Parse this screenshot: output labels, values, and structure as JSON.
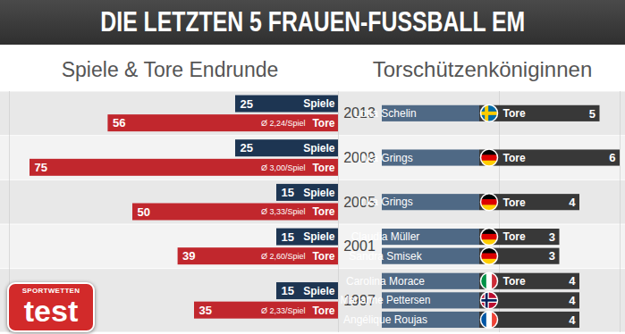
{
  "title": "DIE LETZTEN 5 FRAUEN-FUSSBALL EM",
  "logo": {
    "top": "SPORTWETTEN",
    "main": "test"
  },
  "chart_data": [
    {
      "type": "bar",
      "title": "Spiele & Tore Endrunde",
      "orientation": "horizontal",
      "categories": [
        "2013",
        "2009",
        "2005",
        "2001",
        "1997"
      ],
      "series": [
        {
          "name": "Spiele",
          "color": "#1d3552",
          "values": [
            25,
            25,
            15,
            15,
            15
          ]
        },
        {
          "name": "Tore",
          "color": "#c1272d",
          "values": [
            56,
            75,
            50,
            39,
            35
          ],
          "annotations": [
            "Ø 2,24/Spiel",
            "Ø 3,00/Spiel",
            "Ø 3,33/Spiel",
            "Ø 2,60/Spiel",
            "Ø 2,33/Spiel"
          ]
        }
      ],
      "xlim": [
        0,
        80
      ],
      "data_labels": true,
      "tick_labels": false,
      "grid": false
    },
    {
      "type": "bar",
      "title": "Torschützenköniginnen",
      "orientation": "horizontal",
      "categories": [
        "2013",
        "2009",
        "2005",
        "2001",
        "1997"
      ],
      "series": [
        {
          "name": "Tore",
          "color": "#383838"
        }
      ],
      "scorers": [
        [
          {
            "name": "Lotta Schelin",
            "goals": 5,
            "flag": {
              "marker": "cross",
              "colors": [
                "#006aa7",
                "#fecc00"
              ]
            }
          }
        ],
        [
          {
            "name": "Inka Grings",
            "goals": 6,
            "flag": {
              "marker": "horizontal",
              "colors": [
                "#000000",
                "#dd0000",
                "#ffce00"
              ]
            }
          }
        ],
        [
          {
            "name": "Inka Grings",
            "goals": 4,
            "flag": {
              "marker": "horizontal",
              "colors": [
                "#000000",
                "#dd0000",
                "#ffce00"
              ]
            }
          }
        ],
        [
          {
            "name": "Claudia Müller",
            "goals": 3,
            "flag": {
              "marker": "horizontal",
              "colors": [
                "#000000",
                "#dd0000",
                "#ffce00"
              ]
            }
          },
          {
            "name": "Sandra Smisek",
            "goals": 3,
            "flag": {
              "marker": "horizontal",
              "colors": [
                "#000000",
                "#dd0000",
                "#ffce00"
              ]
            }
          }
        ],
        [
          {
            "name": "Carolina Morace",
            "goals": 4,
            "flag": {
              "marker": "vertical",
              "colors": [
                "#009246",
                "#ffffff",
                "#ce2b37"
              ]
            }
          },
          {
            "name": "Marianne Pettersen",
            "goals": 4,
            "flag": {
              "marker": "cross",
              "colors": [
                "#ba0c2f",
                "#ffffff",
                "#00205b"
              ]
            }
          },
          {
            "name": "Angélique Roujas",
            "goals": 4,
            "flag": {
              "marker": "vertical",
              "colors": [
                "#0055a4",
                "#ffffff",
                "#ef4135"
              ]
            }
          }
        ]
      ],
      "xlim": [
        0,
        6
      ],
      "data_labels": true,
      "tick_labels": false,
      "grid": false
    }
  ]
}
